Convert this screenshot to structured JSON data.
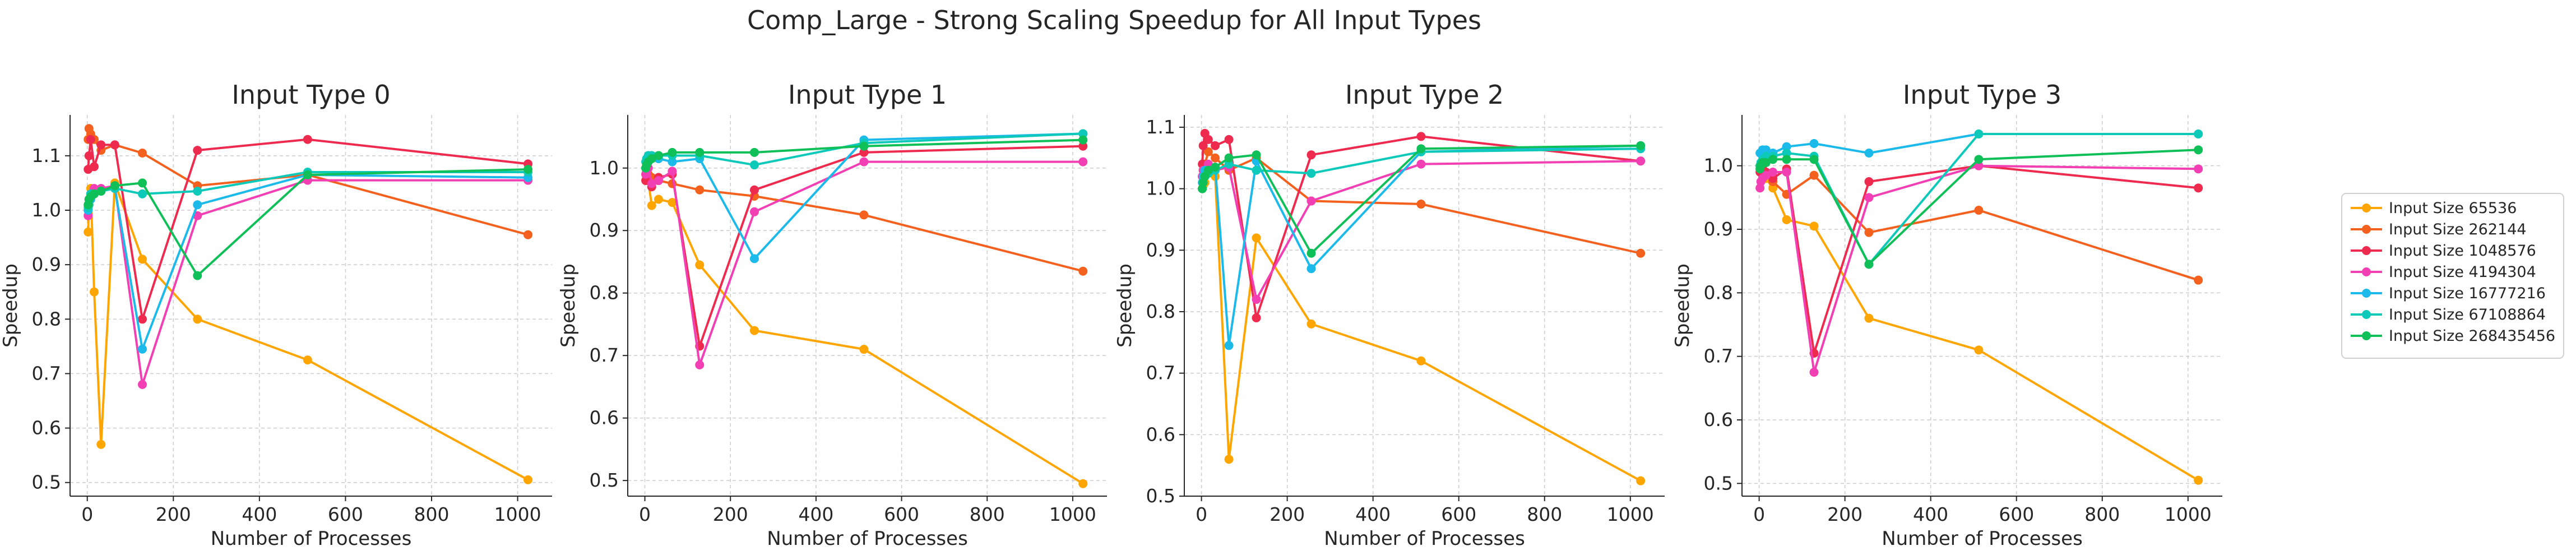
{
  "chart_data": {
    "type": "line",
    "title": "Comp_Large - Strong Scaling Speedup for All Input Types",
    "xlabel": "Number of Processes",
    "ylabel": "Speedup",
    "x": [
      2,
      4,
      8,
      16,
      32,
      64,
      128,
      256,
      512,
      1024
    ],
    "xlim": [
      -40,
      1080
    ],
    "xticks": [
      0,
      200,
      400,
      600,
      800,
      1000
    ],
    "legend": {
      "placement": "right",
      "entries": [
        "Input Size 65536",
        "Input Size 262144",
        "Input Size 1048576",
        "Input Size 4194304",
        "Input Size 16777216",
        "Input Size 67108864",
        "Input Size 268435456"
      ]
    },
    "colors": [
      "#ffa500",
      "#f4601d",
      "#ee2a4e",
      "#f23fb3",
      "#1cb9eb",
      "#0dc9b9",
      "#0fbf57"
    ],
    "panels": [
      {
        "title": "Input Type 0",
        "ylim": [
          0.475,
          1.175
        ],
        "yticks": [
          0.5,
          0.6,
          0.7,
          0.8,
          0.9,
          1.0,
          1.1
        ],
        "series": [
          {
            "name": "Input Size 65536",
            "values": [
              0.96,
              1.01,
              1.04,
              0.85,
              0.57,
              1.05,
              0.91,
              0.8,
              0.725,
              0.505
            ]
          },
          {
            "name": "Input Size 262144",
            "values": [
              1.13,
              1.15,
              1.14,
              1.13,
              1.11,
              1.12,
              1.105,
              1.045,
              1.065,
              0.955
            ]
          },
          {
            "name": "Input Size 1048576",
            "values": [
              1.075,
              1.1,
              1.13,
              1.08,
              1.12,
              1.12,
              0.8,
              1.11,
              1.13,
              1.085
            ]
          },
          {
            "name": "Input Size 4194304",
            "values": [
              0.99,
              1.02,
              1.03,
              1.04,
              1.04,
              1.045,
              0.68,
              0.99,
              1.055,
              1.055
            ]
          },
          {
            "name": "Input Size 16777216",
            "values": [
              1.0,
              1.01,
              1.02,
              1.03,
              1.035,
              1.04,
              0.745,
              1.01,
              1.065,
              1.06
            ]
          },
          {
            "name": "Input Size 67108864",
            "values": [
              1.005,
              1.02,
              1.03,
              1.03,
              1.035,
              1.04,
              1.03,
              1.035,
              1.07,
              1.07
            ]
          },
          {
            "name": "Input Size 268435456",
            "values": [
              1.01,
              1.02,
              1.025,
              1.03,
              1.035,
              1.045,
              1.05,
              0.88,
              1.065,
              1.075
            ]
          }
        ]
      },
      {
        "title": "Input Type 1",
        "ylim": [
          0.475,
          1.085
        ],
        "yticks": [
          0.5,
          0.6,
          0.7,
          0.8,
          0.9,
          1.0
        ],
        "series": [
          {
            "name": "Input Size 65536",
            "values": [
              0.99,
              1.0,
              0.98,
              0.94,
              0.95,
              0.945,
              0.845,
              0.74,
              0.71,
              0.495
            ]
          },
          {
            "name": "Input Size 262144",
            "values": [
              1.0,
              0.995,
              0.99,
              0.985,
              0.98,
              0.975,
              0.965,
              0.955,
              0.925,
              0.835
            ]
          },
          {
            "name": "Input Size 1048576",
            "values": [
              0.98,
              0.99,
              1.0,
              0.97,
              0.985,
              0.99,
              0.715,
              0.965,
              1.025,
              1.035
            ]
          },
          {
            "name": "Input Size 4194304",
            "values": [
              0.99,
              0.995,
              1.0,
              0.975,
              0.98,
              0.995,
              0.685,
              0.93,
              1.01,
              1.01
            ]
          },
          {
            "name": "Input Size 16777216",
            "values": [
              1.0,
              1.01,
              1.02,
              1.02,
              1.015,
              1.01,
              1.015,
              0.855,
              1.045,
              1.055
            ]
          },
          {
            "name": "Input Size 67108864",
            "values": [
              1.01,
              1.015,
              1.02,
              1.02,
              1.02,
              1.02,
              1.02,
              1.005,
              1.04,
              1.055
            ]
          },
          {
            "name": "Input Size 268435456",
            "values": [
              1.0,
              1.005,
              1.01,
              1.015,
              1.02,
              1.025,
              1.025,
              1.025,
              1.035,
              1.045
            ]
          }
        ]
      },
      {
        "title": "Input Type 2",
        "ylim": [
          0.5,
          1.12
        ],
        "yticks": [
          0.5,
          0.6,
          0.7,
          0.8,
          0.9,
          1.0,
          1.1
        ],
        "series": [
          {
            "name": "Input Size 65536",
            "values": [
              1.0,
              1.005,
              1.01,
              1.03,
              1.02,
              0.56,
              0.92,
              0.78,
              0.72,
              0.525
            ]
          },
          {
            "name": "Input Size 262144",
            "values": [
              1.02,
              1.03,
              1.04,
              1.06,
              1.05,
              1.03,
              1.05,
              0.98,
              0.975,
              0.895
            ]
          },
          {
            "name": "Input Size 1048576",
            "values": [
              1.04,
              1.07,
              1.09,
              1.08,
              1.07,
              1.08,
              0.79,
              1.055,
              1.085,
              1.045
            ]
          },
          {
            "name": "Input Size 4194304",
            "values": [
              1.02,
              1.03,
              1.03,
              1.04,
              1.03,
              1.035,
              0.82,
              0.98,
              1.04,
              1.045
            ]
          },
          {
            "name": "Input Size 16777216",
            "values": [
              1.01,
              1.02,
              1.03,
              1.03,
              1.035,
              0.745,
              1.045,
              0.87,
              1.06,
              1.07
            ]
          },
          {
            "name": "Input Size 67108864",
            "values": [
              1.0,
              1.01,
              1.02,
              1.025,
              1.03,
              1.04,
              1.03,
              1.025,
              1.06,
              1.065
            ]
          },
          {
            "name": "Input Size 268435456",
            "values": [
              1.0,
              1.01,
              1.02,
              1.03,
              1.035,
              1.05,
              1.055,
              0.895,
              1.065,
              1.07
            ]
          }
        ]
      },
      {
        "title": "Input Type 3",
        "ylim": [
          0.48,
          1.08
        ],
        "yticks": [
          0.5,
          0.6,
          0.7,
          0.8,
          0.9,
          1.0
        ],
        "series": [
          {
            "name": "Input Size 65536",
            "values": [
              1.0,
              0.99,
              0.985,
              0.98,
              0.965,
              0.915,
              0.905,
              0.76,
              0.71,
              0.505
            ]
          },
          {
            "name": "Input Size 262144",
            "values": [
              1.0,
              0.995,
              0.99,
              0.985,
              0.975,
              0.955,
              0.985,
              0.895,
              0.93,
              0.82
            ]
          },
          {
            "name": "Input Size 1048576",
            "values": [
              0.99,
              0.995,
              1.0,
              0.99,
              0.98,
              0.995,
              0.705,
              0.975,
              1.0,
              0.965
            ]
          },
          {
            "name": "Input Size 4194304",
            "values": [
              0.965,
              0.975,
              0.98,
              0.985,
              0.99,
              0.99,
              0.675,
              0.95,
              1.0,
              0.995
            ]
          },
          {
            "name": "Input Size 16777216",
            "values": [
              1.02,
              1.02,
              1.025,
              1.025,
              1.02,
              1.03,
              1.035,
              1.02,
              1.05,
              1.05
            ]
          },
          {
            "name": "Input Size 67108864",
            "values": [
              1.0,
              1.005,
              1.01,
              1.015,
              1.015,
              1.02,
              1.015,
              0.845,
              1.05,
              1.05
            ]
          },
          {
            "name": "Input Size 268435456",
            "values": [
              0.995,
              1.0,
              1.005,
              1.005,
              1.01,
              1.01,
              1.01,
              0.845,
              1.01,
              1.025
            ]
          }
        ]
      }
    ]
  }
}
